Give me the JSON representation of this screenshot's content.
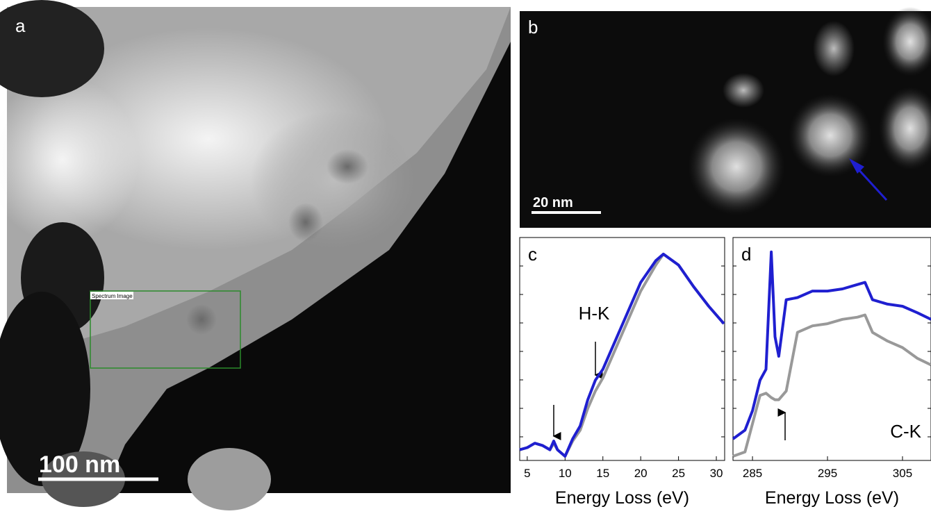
{
  "panels": {
    "a": {
      "label": "a",
      "scale_bar": "100 nm",
      "roi_label": "Spectrum Image"
    },
    "b": {
      "label": "b",
      "scale_bar": "20 nm"
    }
  },
  "chart_data": [
    {
      "type": "line",
      "label": "c",
      "annotation": "H-K",
      "xlabel": "Energy Loss (eV)",
      "x": [
        4,
        5,
        6,
        7,
        8,
        8.5,
        9,
        10,
        11,
        12,
        13,
        14,
        15,
        17,
        20,
        22,
        23,
        25,
        27,
        29,
        31
      ],
      "xlim": [
        4,
        31.1
      ],
      "xticks": [
        5,
        10,
        15,
        20,
        25,
        30
      ],
      "ylim": [
        0,
        1
      ],
      "series": [
        {
          "color": "#1f1fd0",
          "values": [
            0.03,
            0.04,
            0.06,
            0.05,
            0.03,
            0.07,
            0.03,
            0.0,
            0.08,
            0.14,
            0.26,
            0.35,
            0.4,
            0.56,
            0.8,
            0.9,
            0.93,
            0.88,
            0.78,
            0.69,
            0.61
          ]
        },
        {
          "color": "#999999",
          "values": [
            0.03,
            0.04,
            0.06,
            0.05,
            0.03,
            0.06,
            0.03,
            0.0,
            0.07,
            0.12,
            0.22,
            0.3,
            0.36,
            0.52,
            0.76,
            0.88,
            0.93,
            0.88,
            0.78,
            0.69,
            0.61
          ]
        }
      ]
    },
    {
      "type": "line",
      "label": "d",
      "annotation": "C-K",
      "xlabel": "Energy Loss (eV)",
      "x": [
        282.4,
        284,
        285,
        286,
        286.8,
        287.5,
        288,
        288.5,
        289.5,
        291,
        293,
        295,
        297,
        299,
        300,
        301,
        303,
        305,
        307,
        308.8
      ],
      "xlim": [
        282.4,
        308.8
      ],
      "xticks": [
        285,
        295,
        305
      ],
      "ylim": [
        0,
        1
      ],
      "series": [
        {
          "color": "#1f1fd0",
          "values": [
            0.08,
            0.12,
            0.21,
            0.35,
            0.4,
            0.94,
            0.55,
            0.46,
            0.72,
            0.73,
            0.76,
            0.76,
            0.77,
            0.79,
            0.8,
            0.72,
            0.7,
            0.69,
            0.66,
            0.63
          ]
        },
        {
          "color": "#999999",
          "values": [
            0.0,
            0.02,
            0.15,
            0.28,
            0.29,
            0.27,
            0.26,
            0.26,
            0.3,
            0.57,
            0.6,
            0.61,
            0.63,
            0.64,
            0.65,
            0.57,
            0.53,
            0.5,
            0.45,
            0.42
          ]
        }
      ]
    }
  ]
}
